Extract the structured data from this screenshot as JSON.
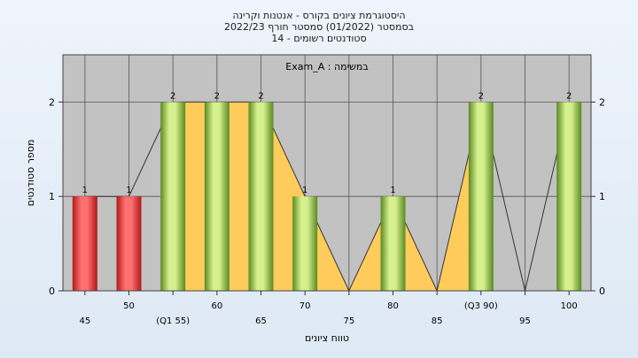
{
  "chart_data": {
    "type": "bar",
    "title_lines": [
      "היסטוגרמת ציונים בקורס - אנטנות וקרינה",
      "בסמסטר  (01/2022)  סמסטר חורף  2022/23",
      "סטודנטים רשומים - 14"
    ],
    "annotation": "במשימה : Exam_A",
    "xlabel": "טווח ציונים",
    "ylabel": "מספר סטודנטים",
    "categories": [
      "45",
      "50",
      "(Q1 55)",
      "60",
      "65",
      "70",
      "75",
      "80",
      "85",
      "(Q3 90)",
      "95",
      "100"
    ],
    "values": [
      1,
      1,
      2,
      2,
      2,
      1,
      0,
      1,
      0,
      2,
      0,
      2
    ],
    "value_labels": [
      "1",
      "1",
      "2",
      "2",
      "2",
      "1",
      "",
      "1",
      "",
      "2",
      "",
      "2"
    ],
    "bar_colors": [
      "red",
      "red",
      "green",
      "green",
      "green",
      "green",
      "",
      "green",
      "",
      "green",
      "",
      "green"
    ],
    "ylim": [
      0,
      2.5
    ],
    "yticks": [
      0,
      1,
      2
    ],
    "quartile_band": {
      "from_index": 2,
      "to_index": 9
    },
    "trend_line": true,
    "grid": true,
    "colors": {
      "plot_bg": "#c2c2c2",
      "band": "#ffcc5c",
      "red_dark": "#b01818",
      "red_light": "#ff7070",
      "green_dark": "#5a8a22",
      "green_light": "#d6f08e",
      "grid": "#555555"
    }
  }
}
